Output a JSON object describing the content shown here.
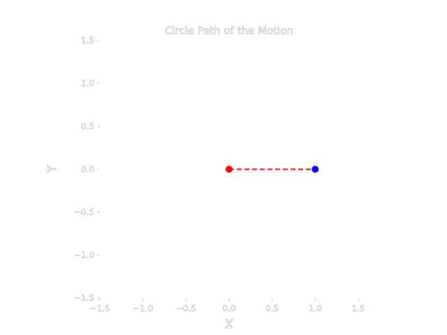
{
  "chart_data": {
    "type": "line",
    "title": "Circle Path of the Motion",
    "xlabel": "X",
    "ylabel": "Y",
    "xlim": [
      -1.5,
      1.5
    ],
    "ylim": [
      -1.5,
      1.5
    ],
    "x_ticks": [
      "−1.5",
      "−1.0",
      "−0.5",
      "0.0",
      "0.5",
      "1.0",
      "1.5"
    ],
    "y_ticks": [
      "1.5",
      "1.0",
      "0.5",
      "0.0",
      "−0.5",
      "−1.0",
      "−1.5"
    ],
    "x_tick_values": [
      -1.5,
      -1.0,
      -0.5,
      0.0,
      0.5,
      1.0,
      1.5
    ],
    "y_tick_values": [
      1.5,
      1.0,
      0.5,
      0.0,
      -0.5,
      -1.0,
      -1.5
    ],
    "grid": false,
    "series": [
      {
        "style": "dashed-line",
        "color": "#ff0000",
        "points": [
          {
            "x": 0.0,
            "y": 0.0
          },
          {
            "x": 1.0,
            "y": 0.0
          }
        ]
      }
    ],
    "markers": [
      {
        "x": 0.0,
        "y": 0.0,
        "color": "#ff0000"
      },
      {
        "x": 1.0,
        "y": 0.0,
        "color": "#0000ff"
      }
    ]
  }
}
